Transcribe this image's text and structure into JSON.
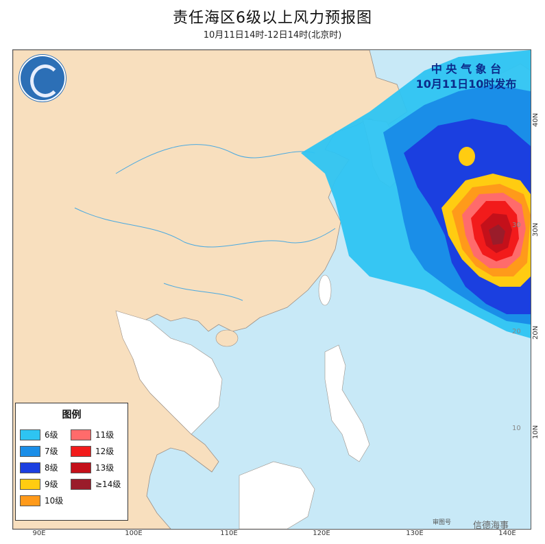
{
  "title": "责任海区6级以上风力预报图",
  "subtitle": "10月11日14时-12日14时(北京时)",
  "issuer": {
    "line1": "中 央 气 象 台",
    "line2": "10月11日10时发布"
  },
  "legend": {
    "title": "图例",
    "items": [
      {
        "label": "6级",
        "color": "#2ec4f2"
      },
      {
        "label": "7级",
        "color": "#1a8ee8"
      },
      {
        "label": "8级",
        "color": "#1b3fe0"
      },
      {
        "label": "9级",
        "color": "#ffcc11"
      },
      {
        "label": "10级",
        "color": "#ff9a1a"
      },
      {
        "label": "11级",
        "color": "#ff6b6b"
      },
      {
        "label": "12级",
        "color": "#f21b1b"
      },
      {
        "label": "13级",
        "color": "#c4101a"
      },
      {
        "label": "≥14级",
        "color": "#9a1c2a"
      }
    ]
  },
  "x_ticks": [
    "90E",
    "100E",
    "110E",
    "120E",
    "130E",
    "140E"
  ],
  "y_ticks": [
    "40N",
    "30N",
    "20N",
    "10N"
  ],
  "map_lat_labels": [
    "30",
    "20",
    "10"
  ],
  "footer": {
    "review": "审图号",
    "watermark": "信德海事"
  },
  "colors": {
    "land": "#f8dfbe",
    "sea": "#c8e9f7",
    "river": "#4aa9e0",
    "border": "#b8a9a0"
  }
}
